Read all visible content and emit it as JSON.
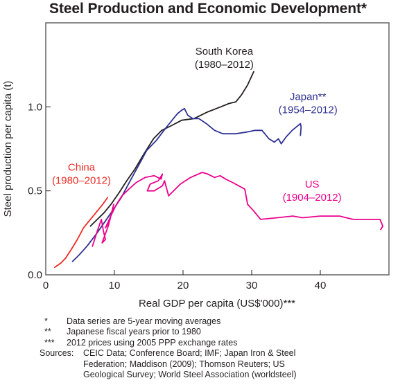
{
  "chart_data": {
    "type": "line",
    "title": "Steel Production and Economic Development*",
    "xlabel": "Real GDP per capita (US$'000)***",
    "ylabel": "Steel production per capita (t)",
    "xlim": [
      0,
      50
    ],
    "ylim": [
      0,
      1.5
    ],
    "xticks": [
      0,
      10,
      20,
      30,
      40
    ],
    "xtick_labels": [
      "0",
      "10",
      "20",
      "30",
      "40"
    ],
    "yticks": [
      0,
      0.5,
      1.0
    ],
    "ytick_labels": [
      "0.0",
      "0.5",
      "1.0"
    ],
    "grid": false,
    "legend": "inline labels",
    "series": [
      {
        "name": "China",
        "period": "(1980–2012)",
        "color": "#ee2a24",
        "label_at": [
          5.2,
          0.62
        ],
        "x": [
          1.3,
          2.2,
          2.9,
          3.7,
          4.6,
          5.5,
          6.5,
          7.5,
          8.3,
          9.0
        ],
        "y": [
          0.045,
          0.07,
          0.1,
          0.15,
          0.21,
          0.28,
          0.33,
          0.38,
          0.42,
          0.46
        ]
      },
      {
        "name": "South Korea",
        "period": "(1980–2012)",
        "color": "#231f20",
        "label_at": [
          26.0,
          1.31
        ],
        "x": [
          6.5,
          7.5,
          8.5,
          9.5,
          10.7,
          11.8,
          13.0,
          14.3,
          15.7,
          16.9,
          18.4,
          19.8,
          21.6,
          23.6,
          25.5,
          26.7,
          27.7,
          28.5,
          29.4,
          30.3
        ],
        "y": [
          0.29,
          0.33,
          0.37,
          0.42,
          0.49,
          0.56,
          0.63,
          0.72,
          0.81,
          0.86,
          0.89,
          0.92,
          0.93,
          0.97,
          1.0,
          1.02,
          1.03,
          1.07,
          1.13,
          1.21
        ]
      },
      {
        "name": "Japan**",
        "period": "(1954–2012)",
        "color": "#2e3192",
        "label_at": [
          38.2,
          1.04
        ],
        "x": [
          3.9,
          4.9,
          6.0,
          7.3,
          8.5,
          9.7,
          11.0,
          12.3,
          13.5,
          14.7,
          16.1,
          17.4,
          18.6,
          19.2,
          19.8,
          20.2,
          20.7,
          21.4,
          22.3,
          23.4,
          24.6,
          25.8,
          27.7,
          29.3,
          30.5,
          31.5,
          32.5,
          33.3,
          33.9,
          34.3,
          35.0,
          35.9,
          37.1,
          37.2,
          37.1
        ],
        "y": [
          0.08,
          0.12,
          0.17,
          0.24,
          0.31,
          0.38,
          0.46,
          0.56,
          0.65,
          0.74,
          0.8,
          0.87,
          0.93,
          0.96,
          0.98,
          0.99,
          0.95,
          0.93,
          0.93,
          0.9,
          0.86,
          0.84,
          0.84,
          0.85,
          0.86,
          0.86,
          0.81,
          0.79,
          0.81,
          0.78,
          0.82,
          0.86,
          0.9,
          0.88,
          0.83
        ]
      },
      {
        "name": "US",
        "period": "(1904–2012)",
        "color": "#ec008c",
        "label_at": [
          38.8,
          0.52
        ],
        "x": [
          6.8,
          7.5,
          8.1,
          8.4,
          8.7,
          8.2,
          9.1,
          9.6,
          9.9,
          9.3,
          8.7,
          9.7,
          10.3,
          11.1,
          12.1,
          13.2,
          14.5,
          15.8,
          16.8,
          17.0,
          16.4,
          15.2,
          14.8,
          15.8,
          17.0,
          17.3,
          17.9,
          19.6,
          21.1,
          22.8,
          23.6,
          24.6,
          25.4,
          26.2,
          27.2,
          29.0,
          29.4,
          30.3,
          31.3,
          33.7,
          36.0,
          37.4,
          40.0,
          42.8,
          44.8,
          46.7,
          48.7,
          49.1,
          48.8
        ],
        "y": [
          0.17,
          0.26,
          0.33,
          0.26,
          0.21,
          0.19,
          0.29,
          0.37,
          0.42,
          0.32,
          0.28,
          0.37,
          0.42,
          0.47,
          0.51,
          0.55,
          0.58,
          0.59,
          0.57,
          0.6,
          0.56,
          0.54,
          0.5,
          0.5,
          0.53,
          0.56,
          0.47,
          0.54,
          0.58,
          0.61,
          0.6,
          0.58,
          0.59,
          0.57,
          0.55,
          0.51,
          0.42,
          0.38,
          0.33,
          0.34,
          0.35,
          0.34,
          0.35,
          0.35,
          0.33,
          0.33,
          0.33,
          0.29,
          0.27
        ]
      }
    ]
  },
  "notes": [
    {
      "mark": "*",
      "text": "Data series are 5-year moving averages"
    },
    {
      "mark": "**",
      "text": "Japanese fiscal years prior to 1980"
    },
    {
      "mark": "***",
      "text": "2012 prices using 2005 PPP exchange rates"
    }
  ],
  "sources": {
    "label": "Sources:",
    "text": "CEIC Data; Conference Board; IMF; Japan Iron & Steel Federation; Maddison (2009); Thomson Reuters; US Geological Survey; World Steel Association (worldsteel)"
  }
}
